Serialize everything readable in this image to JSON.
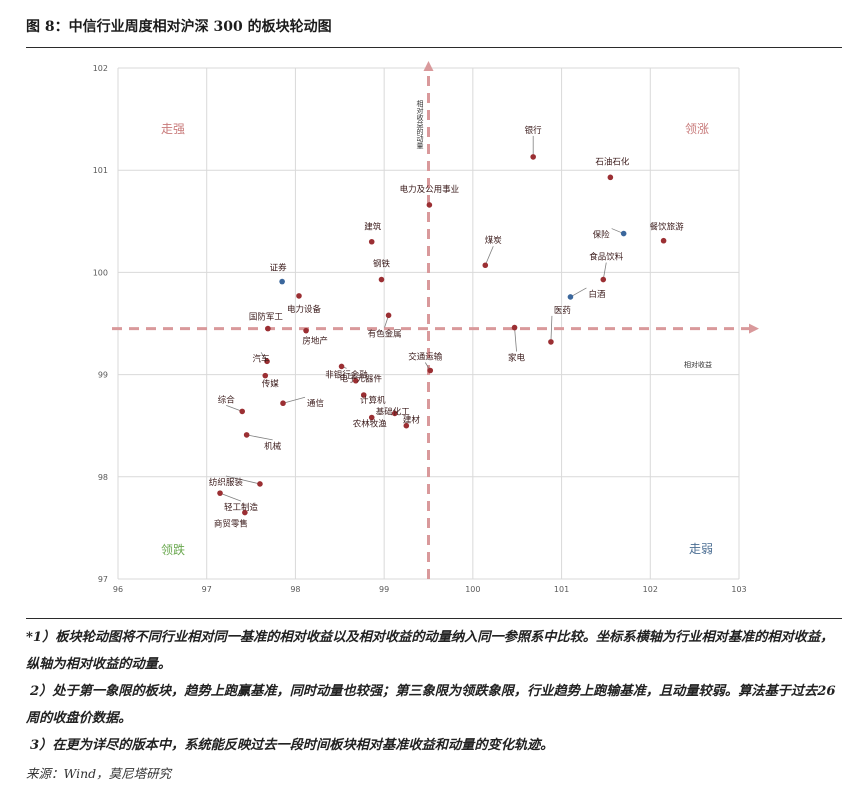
{
  "figure": {
    "title": "图 8：中信行业周度相对沪深 300 的板块轮动图"
  },
  "chart_data": {
    "type": "scatter",
    "xlim": [
      96,
      103
    ],
    "ylim": [
      97,
      102
    ],
    "xticks": [
      "96",
      "97",
      "98",
      "99",
      "100",
      "101",
      "102",
      "103"
    ],
    "yticks": [
      "97",
      "98",
      "99",
      "100",
      "101",
      "102"
    ],
    "grid": true,
    "axis_label_x": "相对收益",
    "axis_label_y": "相对收益的动量",
    "quadrants": {
      "top_left": "走强",
      "top_right": "领涨",
      "bottom_left": "领跌",
      "bottom_right": "走弱"
    },
    "quadrant_colors": {
      "top_left": "#c87a7a",
      "top_right": "#c87a7a",
      "bottom_left": "#6aa84f",
      "bottom_right": "#4a6d92"
    },
    "reference_lines": {
      "x": 99.5,
      "y": 99.45,
      "color": "#d9999b"
    },
    "series_colors": {
      "default": "#9b2f33",
      "highlight": "#3b679c"
    },
    "points": [
      {
        "name": "银行",
        "x": 100.68,
        "y": 101.13
      },
      {
        "name": "石油石化",
        "x": 101.55,
        "y": 100.93
      },
      {
        "name": "保险",
        "x": 101.7,
        "y": 100.38,
        "highlight": true
      },
      {
        "name": "餐饮旅游",
        "x": 102.15,
        "y": 100.31
      },
      {
        "name": "电力及公用事业",
        "x": 99.51,
        "y": 100.66
      },
      {
        "name": "建筑",
        "x": 98.86,
        "y": 100.3
      },
      {
        "name": "煤炭",
        "x": 100.14,
        "y": 100.07
      },
      {
        "name": "食品饮料",
        "x": 101.47,
        "y": 99.93
      },
      {
        "name": "钢铁",
        "x": 98.97,
        "y": 99.93
      },
      {
        "name": "证券",
        "x": 97.85,
        "y": 99.91,
        "highlight": true
      },
      {
        "name": "白酒",
        "x": 101.1,
        "y": 99.76,
        "highlight": true
      },
      {
        "name": "电力设备",
        "x": 98.04,
        "y": 99.77
      },
      {
        "name": "房地产",
        "x": 98.12,
        "y": 99.43
      },
      {
        "name": "国防军工",
        "x": 97.69,
        "y": 99.45
      },
      {
        "name": "有色金属",
        "x": 99.05,
        "y": 99.58
      },
      {
        "name": "医药",
        "x": 100.88,
        "y": 99.32
      },
      {
        "name": "家电",
        "x": 100.47,
        "y": 99.46
      },
      {
        "name": "汽车",
        "x": 97.68,
        "y": 99.13
      },
      {
        "name": "传媒",
        "x": 97.66,
        "y": 98.99
      },
      {
        "name": "交通运输",
        "x": 99.52,
        "y": 99.04
      },
      {
        "name": "非银行金融",
        "x": 98.52,
        "y": 99.08
      },
      {
        "name": "电子元器件",
        "x": 98.68,
        "y": 98.94
      },
      {
        "name": "综合",
        "x": 97.4,
        "y": 98.64
      },
      {
        "name": "通信",
        "x": 97.86,
        "y": 98.72
      },
      {
        "name": "计算机",
        "x": 98.77,
        "y": 98.8
      },
      {
        "name": "基础化工",
        "x": 99.12,
        "y": 98.62
      },
      {
        "name": "建材",
        "x": 99.25,
        "y": 98.5
      },
      {
        "name": "农林牧渔",
        "x": 98.86,
        "y": 98.58
      },
      {
        "name": "机械",
        "x": 97.45,
        "y": 98.41
      },
      {
        "name": "纺织服装",
        "x": 97.6,
        "y": 97.93
      },
      {
        "name": "轻工制造",
        "x": 97.15,
        "y": 97.84
      },
      {
        "name": "商贸零售",
        "x": 97.43,
        "y": 97.65
      }
    ]
  },
  "notes": [
    "*1）板块轮动图将不同行业相对同一基准的相对收益以及相对收益的动量纳入同一参照系中比较。坐标系横轴为行业相对基准的相对收益，纵轴为相对收益的动量。",
    "2）处于第一象限的板块，趋势上跑赢基准，同时动量也较强；第三象限为领跌象限，行业趋势上跑输基准，且动量较弱。算法基于过去26周的收盘价数据。",
    "3）在更为详尽的版本中，系统能反映过去一段时间板块相对基准收益和动量的变化轨迹。"
  ],
  "source": "来源：Wind，莫尼塔研究"
}
